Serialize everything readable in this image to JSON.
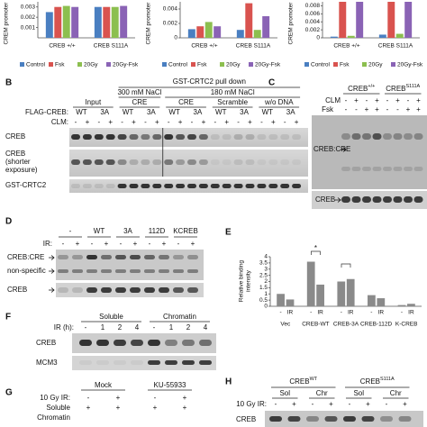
{
  "panel_a": [
    {
      "type": "bar",
      "y_label": "CREM promoter",
      "categories": [
        "CREB +/+",
        "CREB S111A"
      ],
      "series": [
        {
          "name": "Control",
          "color": "#4a7fc1",
          "values": [
            0.0025,
            0.003
          ]
        },
        {
          "name": "Fsk",
          "color": "#d9534f",
          "values": [
            0.003,
            0.003
          ]
        },
        {
          "name": "20Gy",
          "color": "#8cbf4f",
          "values": [
            0.0031,
            0.003
          ]
        },
        {
          "name": "20Gy-Fsk",
          "color": "#8a63b5",
          "values": [
            0.003,
            0.0031
          ]
        }
      ],
      "ylim": [
        0,
        0.0035
      ],
      "yticks": [
        0.001,
        0.002,
        0.003
      ]
    },
    {
      "type": "bar",
      "y_label": "CREM promoter",
      "categories": [
        "CREB +/+",
        "CREB S111A"
      ],
      "series": [
        {
          "name": "Control",
          "color": "#4a7fc1",
          "values": [
            0.0012,
            0.0011
          ]
        },
        {
          "name": "Fsk",
          "color": "#d9534f",
          "values": [
            0.0016,
            0.0048
          ]
        },
        {
          "name": "20Gy",
          "color": "#8cbf4f",
          "values": [
            0.0022,
            0.0011
          ]
        },
        {
          "name": "20Gy-Fsk",
          "color": "#8a63b5",
          "values": [
            0.0016,
            0.003
          ]
        }
      ],
      "ylim": [
        0,
        0.005
      ],
      "yticks": [
        0,
        0.002,
        0.004
      ]
    },
    {
      "type": "bar",
      "y_label": "CREM promoter",
      "categories": [
        "CREB +/+",
        "CREB S111A"
      ],
      "series": [
        {
          "name": "Control",
          "color": "#4a7fc1",
          "values": [
            0.0003,
            0.0008
          ]
        },
        {
          "name": "Fsk",
          "color": "#d9534f",
          "values": [
            0.009,
            0.009
          ]
        },
        {
          "name": "20Gy",
          "color": "#8cbf4f",
          "values": [
            0.0005,
            0.001
          ]
        },
        {
          "name": "20Gy-Fsk",
          "color": "#8a63b5",
          "values": [
            0.009,
            0.009
          ]
        }
      ],
      "ylim": [
        0,
        0.009
      ],
      "yticks": [
        0,
        0.002,
        0.004,
        0.006,
        0.008
      ]
    }
  ],
  "panel_b": {
    "label": "B",
    "title": "GST-CRTC2 pull down",
    "salt": [
      "300 mM NaCl",
      "180 mM NaCl"
    ],
    "groups": [
      "Input",
      "CRE",
      "CRE",
      "Scramble",
      "w/o DNA"
    ],
    "flag_label": "FLAG-CREB:",
    "flag_lanes": [
      "WT",
      "3A",
      "WT",
      "3A",
      "WT",
      "3A",
      "WT",
      "3A",
      "WT",
      "3A"
    ],
    "clm_label": "CLM:",
    "clm_lanes": [
      "-",
      "+",
      "-",
      "+",
      "-",
      "+",
      "-",
      "+",
      "-",
      "+",
      "-",
      "+",
      "-",
      "+",
      "-",
      "+",
      "-",
      "+",
      "-",
      "+"
    ],
    "blots": [
      [
        "CREB"
      ],
      [
        "CREB",
        "(shorter",
        "exposure)"
      ],
      [
        "GST-CRTC2"
      ]
    ]
  },
  "panel_c": {
    "label": "C",
    "genotypes": [
      "CREB",
      "CREB"
    ],
    "superscripts": [
      "+/+",
      "S111A"
    ],
    "rows": [
      {
        "label": "CLM",
        "lanes": [
          "-",
          "+",
          "-",
          "+",
          "-",
          "+",
          "-",
          "+"
        ]
      },
      {
        "label": "Fsk",
        "lanes": [
          "-",
          "-",
          "+",
          "+",
          "-",
          "-",
          "+",
          "+"
        ]
      }
    ],
    "bands": [
      "CREB:CRE",
      "CREB"
    ]
  },
  "panel_d": {
    "label": "D",
    "ir_label": "IR:",
    "groups": [
      "-",
      "WT",
      "3A",
      "112D",
      "KCREB"
    ],
    "ir_lanes": [
      "-",
      "+",
      "-",
      "+",
      "-",
      "+",
      "-",
      "+",
      "-",
      "+"
    ],
    "bands": [
      "CREB:CRE",
      "non-specific",
      "CREB"
    ]
  },
  "panel_e": {
    "type": "bar",
    "label": "E",
    "y_label": [
      "Relative binding",
      "intensity"
    ],
    "categories": [
      "Vec",
      "CREB-WT",
      "CREB-3A",
      "CREB-112D",
      "K-CREB"
    ],
    "series": [
      {
        "name": "-",
        "color": "#8a8a8a",
        "values": [
          1,
          3.6,
          2,
          0.9,
          0.1
        ]
      },
      {
        "name": "IR",
        "color": "#8a8a8a",
        "values": [
          0.55,
          1.75,
          2.2,
          0.65,
          0.2
        ]
      }
    ],
    "ylim": [
      0,
      4
    ],
    "yticks": [
      0,
      0.5,
      1,
      1.5,
      2,
      2.5,
      3,
      3.5,
      4
    ],
    "annotation": "*"
  },
  "panel_f": {
    "label": "F",
    "ir_label": "IR (h):",
    "fractions": [
      "Soluble",
      "Chromatin"
    ],
    "lanes": [
      "-",
      "1",
      "2",
      "4",
      "-",
      "1",
      "2",
      "4"
    ],
    "bands": [
      "CREB",
      "MCM3"
    ]
  },
  "panel_g": {
    "label": "G",
    "treatments": [
      "Mock",
      "KU-55933"
    ],
    "ir_label": "10 Gy IR:",
    "ir_lanes": [
      "-",
      "+",
      "-",
      "+"
    ],
    "rows": [
      {
        "label": "Soluble",
        "lanes": [
          "+",
          "+",
          "+",
          "+"
        ]
      }
    ],
    "cut_label": "Chromatin"
  },
  "panel_h": {
    "label": "H",
    "genotypes": [
      "CREB",
      "CREB"
    ],
    "superscripts": [
      "WT",
      "S111A"
    ],
    "fractions": [
      "Sol",
      "Chr",
      "Sol",
      "Chr"
    ],
    "ir_label": "10 Gy IR:",
    "ir_lanes": [
      "-",
      "+",
      "-",
      "+",
      "-",
      "+",
      "-",
      "+"
    ],
    "band": "CREB"
  }
}
